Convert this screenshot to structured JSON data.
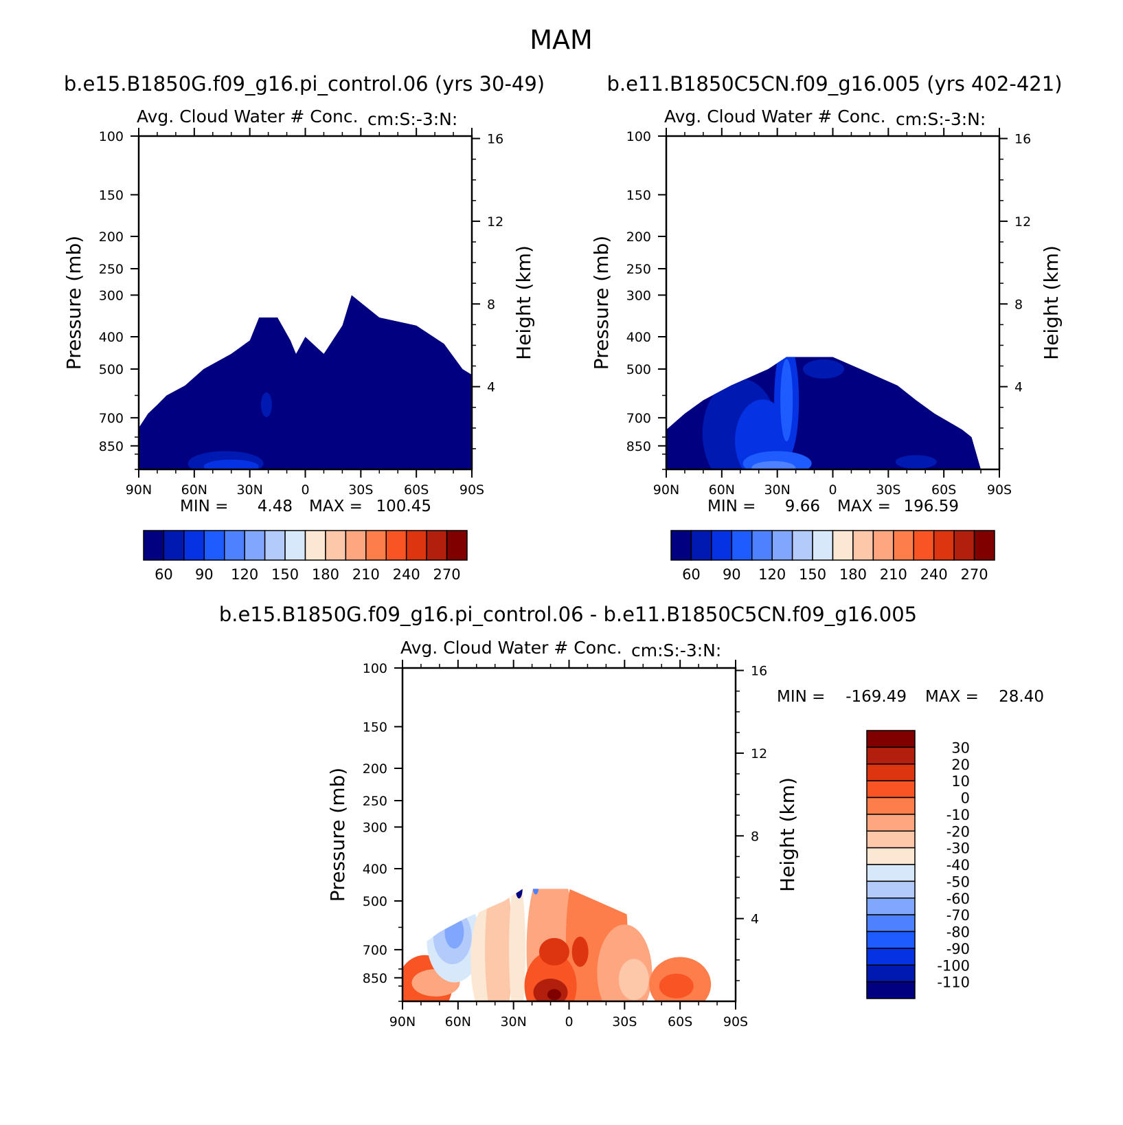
{
  "figure_title": "MAM",
  "panels": [
    {
      "case_title": "b.e15.B1850G.f09_g16.pi_control.06 (yrs 30-49)",
      "plot_title": "Avg. Cloud Water # Conc.",
      "plot_subtitle": "cm:S:-3:N:",
      "min_label": "MIN =",
      "min_value": "4.48",
      "max_label": "MAX =",
      "max_value": "100.45"
    },
    {
      "case_title": "b.e11.B1850C5CN.f09_g16.005 (yrs 402-421)",
      "plot_title": "Avg. Cloud Water # Conc.",
      "plot_subtitle": "cm:S:-3:N:",
      "min_label": "MIN =",
      "min_value": "9.66",
      "max_label": "MAX =",
      "max_value": "196.59"
    },
    {
      "case_title": "b.e15.B1850G.f09_g16.pi_control.06 - b.e11.B1850C5CN.f09_g16.005",
      "plot_title": "Avg. Cloud Water # Conc.",
      "plot_subtitle": "cm:S:-3:N:",
      "min_label": "MIN =",
      "min_value": "-169.49",
      "max_label": "MAX =",
      "max_value": "28.40"
    }
  ],
  "axes": {
    "left_label": "Pressure (mb)",
    "right_label": "Height (km)",
    "pressure_ticks": [
      "100",
      "150",
      "200",
      "250",
      "300",
      "400",
      "500",
      "700",
      "850"
    ],
    "height_ticks": [
      "16",
      "12",
      "8",
      "4"
    ],
    "lat_ticks": [
      "90N",
      "60N",
      "30N",
      "0",
      "30S",
      "60S",
      "90S"
    ]
  },
  "colorbars": {
    "absolute_labels": [
      "60",
      "90",
      "120",
      "150",
      "180",
      "210",
      "240",
      "270"
    ],
    "difference_labels": [
      "30",
      "20",
      "10",
      "0",
      "-10",
      "-20",
      "-30",
      "-40",
      "-50",
      "-60",
      "-70",
      "-80",
      "-90",
      "-100",
      "-110"
    ],
    "colors": [
      "#000080",
      "#0019b0",
      "#0533e3",
      "#1f5cff",
      "#4d81ff",
      "#80a7fb",
      "#b3cbfb",
      "#d8e8fb",
      "#fce7d2",
      "#fdc8a9",
      "#fda67f",
      "#fd7d4b",
      "#f85424",
      "#dd3510",
      "#b21f0d",
      "#800000"
    ]
  },
  "chart_data": [
    {
      "type": "heatmap",
      "title": "Avg. Cloud Water # Conc.",
      "xlabel": "",
      "ylabel": "Pressure (mb)",
      "y2label": "Height (km)",
      "x_ticks": [
        "90N",
        "60N",
        "30N",
        "0",
        "30S",
        "60S",
        "90S"
      ],
      "y_ticks": [
        100,
        150,
        200,
        250,
        300,
        400,
        500,
        700,
        850
      ],
      "ylim": [
        100,
        1000
      ],
      "y_scale": "log",
      "min": 4.48,
      "max": 100.45,
      "levels": [
        45,
        60,
        75,
        90,
        105,
        120,
        135,
        150,
        165,
        180,
        195,
        210,
        225,
        240,
        255,
        270
      ],
      "cloud_top": [
        {
          "lat": -90,
          "p": 750
        },
        {
          "lat": -85,
          "p": 680
        },
        {
          "lat": -80,
          "p": 640
        },
        {
          "lat": -75,
          "p": 600
        },
        {
          "lat": -65,
          "p": 560
        },
        {
          "lat": -55,
          "p": 500
        },
        {
          "lat": -40,
          "p": 450
        },
        {
          "lat": -30,
          "p": 410
        },
        {
          "lat": -25,
          "p": 350
        },
        {
          "lat": -15,
          "p": 350
        },
        {
          "lat": -8,
          "p": 410
        },
        {
          "lat": -5,
          "p": 450
        },
        {
          "lat": 0,
          "p": 400
        },
        {
          "lat": 10,
          "p": 450
        },
        {
          "lat": 20,
          "p": 370
        },
        {
          "lat": 25,
          "p": 300
        },
        {
          "lat": 40,
          "p": 350
        },
        {
          "lat": 60,
          "p": 370
        },
        {
          "lat": 75,
          "p": 420
        },
        {
          "lat": 85,
          "p": 500
        },
        {
          "lat": 90,
          "p": 520
        }
      ]
    },
    {
      "type": "heatmap",
      "title": "Avg. Cloud Water # Conc.",
      "xlabel": "",
      "ylabel": "Pressure (mb)",
      "y2label": "Height (km)",
      "x_ticks": [
        "90N",
        "60N",
        "30N",
        "0",
        "30S",
        "60S",
        "90S"
      ],
      "y_ticks": [
        100,
        150,
        200,
        250,
        300,
        400,
        500,
        700,
        850
      ],
      "ylim": [
        100,
        1000
      ],
      "y_scale": "log",
      "min": 9.66,
      "max": 196.59,
      "levels": [
        45,
        60,
        75,
        90,
        105,
        120,
        135,
        150,
        165,
        180,
        195,
        210,
        225,
        240,
        255,
        270
      ],
      "cloud_top": [
        {
          "lat": -90,
          "p": 760
        },
        {
          "lat": -80,
          "p": 680
        },
        {
          "lat": -70,
          "p": 620
        },
        {
          "lat": -55,
          "p": 560
        },
        {
          "lat": -35,
          "p": 500
        },
        {
          "lat": -25,
          "p": 460
        },
        {
          "lat": 0,
          "p": 460
        },
        {
          "lat": 15,
          "p": 500
        },
        {
          "lat": 35,
          "p": 560
        },
        {
          "lat": 45,
          "p": 620
        },
        {
          "lat": 55,
          "p": 680
        },
        {
          "lat": 70,
          "p": 760
        },
        {
          "lat": 75,
          "p": 800
        },
        {
          "lat": 80,
          "p": 1000
        }
      ]
    },
    {
      "type": "heatmap",
      "title": "Avg. Cloud Water # Conc.",
      "xlabel": "",
      "ylabel": "Pressure (mb)",
      "y2label": "Height (km)",
      "x_ticks": [
        "90N",
        "60N",
        "30N",
        "0",
        "30S",
        "60S",
        "90S"
      ],
      "y_ticks": [
        100,
        150,
        200,
        250,
        300,
        400,
        500,
        700,
        850
      ],
      "ylim": [
        100,
        1000
      ],
      "y_scale": "log",
      "min": -169.49,
      "max": 28.4,
      "levels": [
        -110,
        -100,
        -90,
        -80,
        -70,
        -60,
        -50,
        -40,
        -30,
        -20,
        -10,
        0,
        10,
        20,
        30
      ],
      "cloud_top": [
        {
          "lat": -90,
          "p": 760
        },
        {
          "lat": -80,
          "p": 680
        },
        {
          "lat": -70,
          "p": 620
        },
        {
          "lat": -55,
          "p": 560
        },
        {
          "lat": -35,
          "p": 500
        },
        {
          "lat": -25,
          "p": 460
        },
        {
          "lat": 0,
          "p": 460
        },
        {
          "lat": 15,
          "p": 500
        },
        {
          "lat": 35,
          "p": 560
        },
        {
          "lat": 45,
          "p": 620
        },
        {
          "lat": 55,
          "p": 680
        },
        {
          "lat": 70,
          "p": 760
        },
        {
          "lat": 75,
          "p": 800
        },
        {
          "lat": 80,
          "p": 1000
        }
      ]
    }
  ]
}
